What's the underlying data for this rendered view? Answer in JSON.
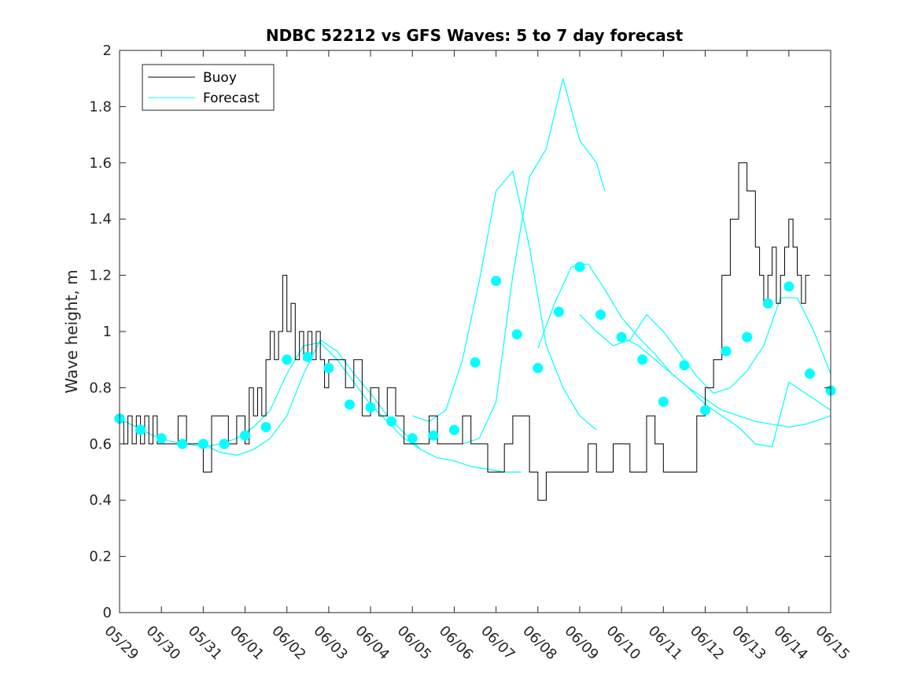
{
  "chart_data": {
    "type": "line",
    "title": "NDBC 52212 vs GFS Waves: 5 to 7 day forecast",
    "ylabel": "Wave height, m",
    "xlabel": "",
    "xlim": [
      0,
      17
    ],
    "ylim": [
      0,
      2
    ],
    "x_tick_labels": [
      "05/29",
      "05/30",
      "05/31",
      "06/01",
      "06/02",
      "06/03",
      "06/04",
      "06/05",
      "06/06",
      "06/07",
      "06/08",
      "06/09",
      "06/10",
      "06/11",
      "06/12",
      "06/13",
      "06/14",
      "06/15"
    ],
    "y_ticks": [
      0,
      0.2,
      0.4,
      0.6,
      0.8,
      1,
      1.2,
      1.4,
      1.6,
      1.8,
      2
    ],
    "y_tick_labels": [
      "0",
      "0.2",
      "0.4",
      "0.6",
      "0.8",
      "1",
      "1.2",
      "1.4",
      "1.6",
      "1.8",
      "2"
    ],
    "grid": false,
    "legend": {
      "position": "top-left",
      "entries": [
        "Buoy",
        "Forecast"
      ]
    },
    "colors": {
      "buoy": "#000000",
      "forecast": "#00ffff"
    },
    "series": [
      {
        "name": "Buoy",
        "style": "line",
        "x": [
          0,
          0.1,
          0.2,
          0.3,
          0.4,
          0.5,
          0.6,
          0.7,
          0.8,
          0.9,
          1.0,
          1.2,
          1.4,
          1.6,
          1.8,
          2.0,
          2.2,
          2.4,
          2.6,
          2.8,
          3.0,
          3.1,
          3.2,
          3.3,
          3.4,
          3.5,
          3.6,
          3.7,
          3.8,
          3.9,
          4.0,
          4.1,
          4.2,
          4.3,
          4.4,
          4.5,
          4.6,
          4.7,
          4.8,
          4.9,
          5.0,
          5.2,
          5.4,
          5.6,
          5.8,
          6.0,
          6.2,
          6.4,
          6.6,
          6.8,
          7.0,
          7.2,
          7.4,
          7.6,
          7.8,
          8.0,
          8.2,
          8.4,
          8.6,
          8.8,
          9.0,
          9.2,
          9.4,
          9.6,
          9.8,
          10.0,
          10.2,
          10.4,
          10.6,
          10.8,
          11.0,
          11.2,
          11.4,
          11.6,
          11.8,
          12.0,
          12.2,
          12.4,
          12.6,
          12.8,
          13.0,
          13.2,
          13.4,
          13.6,
          13.8,
          14.0,
          14.2,
          14.4,
          14.6,
          14.8,
          15.0,
          15.2,
          15.3,
          15.4,
          15.5,
          15.6,
          15.7,
          15.8,
          15.9,
          16.0,
          16.1,
          16.2,
          16.3,
          16.4,
          16.5
        ],
        "values": [
          0.7,
          0.6,
          0.7,
          0.6,
          0.7,
          0.6,
          0.7,
          0.6,
          0.7,
          0.6,
          0.6,
          0.6,
          0.7,
          0.6,
          0.6,
          0.5,
          0.7,
          0.7,
          0.6,
          0.7,
          0.6,
          0.8,
          0.7,
          0.8,
          0.7,
          0.9,
          1.0,
          0.9,
          1.0,
          1.2,
          1.0,
          1.1,
          0.9,
          1.0,
          0.9,
          1.0,
          0.9,
          1.0,
          0.9,
          0.8,
          0.9,
          0.9,
          0.8,
          0.9,
          0.7,
          0.8,
          0.7,
          0.8,
          0.7,
          0.6,
          0.6,
          0.6,
          0.7,
          0.6,
          0.6,
          0.6,
          0.7,
          0.6,
          0.6,
          0.5,
          0.5,
          0.6,
          0.7,
          0.7,
          0.5,
          0.4,
          0.5,
          0.5,
          0.5,
          0.5,
          0.5,
          0.6,
          0.5,
          0.5,
          0.6,
          0.6,
          0.5,
          0.5,
          0.7,
          0.6,
          0.5,
          0.5,
          0.5,
          0.5,
          0.7,
          0.8,
          0.9,
          1.2,
          1.4,
          1.6,
          1.5,
          1.3,
          1.2,
          1.1,
          1.2,
          1.3,
          1.1,
          1.2,
          1.3,
          1.4,
          1.3,
          1.2,
          1.1,
          1.2,
          1.2
        ]
      },
      {
        "name": "Forecast",
        "style": "line",
        "x": [
          0,
          0.5,
          1.0,
          1.5,
          2.0,
          2.5,
          3.0,
          3.5,
          4.0,
          4.5,
          5.0,
          5.5,
          6.0,
          6.5,
          7.0,
          7.5,
          8.0,
          8.5,
          9.0,
          9.5,
          10.0,
          10.5,
          11.0,
          11.5,
          12.0,
          12.5,
          13.0,
          13.5,
          14.0,
          14.5,
          15.0,
          15.5,
          16.0,
          16.5,
          17.0
        ],
        "values": [
          0.69,
          0.65,
          0.62,
          0.6,
          0.6,
          0.6,
          0.63,
          0.66,
          0.9,
          0.91,
          0.87,
          0.74,
          0.73,
          0.68,
          0.62,
          0.63,
          0.65,
          0.89,
          1.18,
          0.99,
          0.87,
          1.07,
          1.23,
          1.06,
          0.98,
          0.9,
          0.75,
          0.88,
          0.72,
          0.93,
          0.98,
          1.1,
          1.16,
          0.85,
          0.79
        ]
      }
    ],
    "forecast_traces": [
      {
        "x": [
          0,
          0.4,
          0.8,
          1.2,
          1.6,
          2.0,
          2.4,
          2.8,
          3.2,
          3.6,
          4.0,
          4.4,
          4.8,
          5.2,
          5.6,
          6.0,
          6.4,
          6.8,
          7.2
        ],
        "values": [
          0.69,
          0.66,
          0.63,
          0.61,
          0.6,
          0.59,
          0.6,
          0.62,
          0.66,
          0.72,
          0.85,
          0.95,
          0.96,
          0.9,
          0.82,
          0.74,
          0.68,
          0.62,
          0.58
        ]
      },
      {
        "x": [
          2.0,
          2.4,
          2.8,
          3.2,
          3.6,
          4.0,
          4.4,
          4.8,
          5.2,
          5.6,
          6.0,
          6.4,
          6.8,
          7.2,
          7.6,
          8.0,
          8.4,
          8.8,
          9.2,
          9.6
        ],
        "values": [
          0.6,
          0.57,
          0.56,
          0.58,
          0.62,
          0.7,
          0.85,
          0.97,
          0.93,
          0.85,
          0.78,
          0.7,
          0.64,
          0.58,
          0.55,
          0.54,
          0.52,
          0.51,
          0.5,
          0.5
        ]
      },
      {
        "x": [
          7.0,
          7.4,
          7.8,
          8.2,
          8.6,
          9.0,
          9.4,
          9.8,
          10.2,
          10.6,
          11.0,
          11.4
        ],
        "values": [
          0.7,
          0.68,
          0.72,
          0.9,
          1.18,
          1.5,
          1.57,
          1.3,
          0.95,
          0.8,
          0.7,
          0.65
        ]
      },
      {
        "x": [
          8.2,
          8.6,
          9.0,
          9.4,
          9.8,
          10.2,
          10.6,
          11.0,
          11.4,
          11.6
        ],
        "values": [
          0.6,
          0.62,
          0.75,
          1.2,
          1.55,
          1.65,
          1.9,
          1.68,
          1.6,
          1.5
        ]
      },
      {
        "x": [
          10.0,
          10.4,
          10.8,
          11.2,
          11.6,
          12.0,
          12.4,
          12.8,
          13.2,
          13.6,
          14.0,
          14.4,
          14.8,
          15.2,
          15.6,
          16.0,
          16.4,
          17.0
        ],
        "values": [
          0.94,
          1.1,
          1.23,
          1.24,
          1.15,
          1.05,
          0.98,
          0.92,
          0.85,
          0.8,
          0.76,
          0.72,
          0.7,
          0.68,
          0.67,
          0.66,
          0.67,
          0.7
        ]
      },
      {
        "x": [
          11.0,
          11.4,
          11.8,
          12.2,
          12.6,
          13.0,
          13.4,
          13.8,
          14.2,
          14.6,
          15.0,
          15.4,
          15.8,
          16.2,
          16.6,
          17.0
        ],
        "values": [
          1.06,
          1.0,
          0.95,
          0.97,
          1.06,
          1.0,
          0.92,
          0.84,
          0.78,
          0.8,
          0.86,
          0.95,
          1.12,
          1.12,
          1.0,
          0.85
        ]
      },
      {
        "x": [
          12.0,
          12.4,
          12.8,
          13.2,
          13.6,
          14.0,
          14.4,
          14.8,
          15.2,
          15.6,
          16.0,
          16.4,
          16.8,
          17.0
        ],
        "values": [
          0.98,
          0.95,
          0.9,
          0.85,
          0.8,
          0.74,
          0.7,
          0.66,
          0.6,
          0.59,
          0.82,
          0.78,
          0.74,
          0.72
        ]
      }
    ]
  }
}
